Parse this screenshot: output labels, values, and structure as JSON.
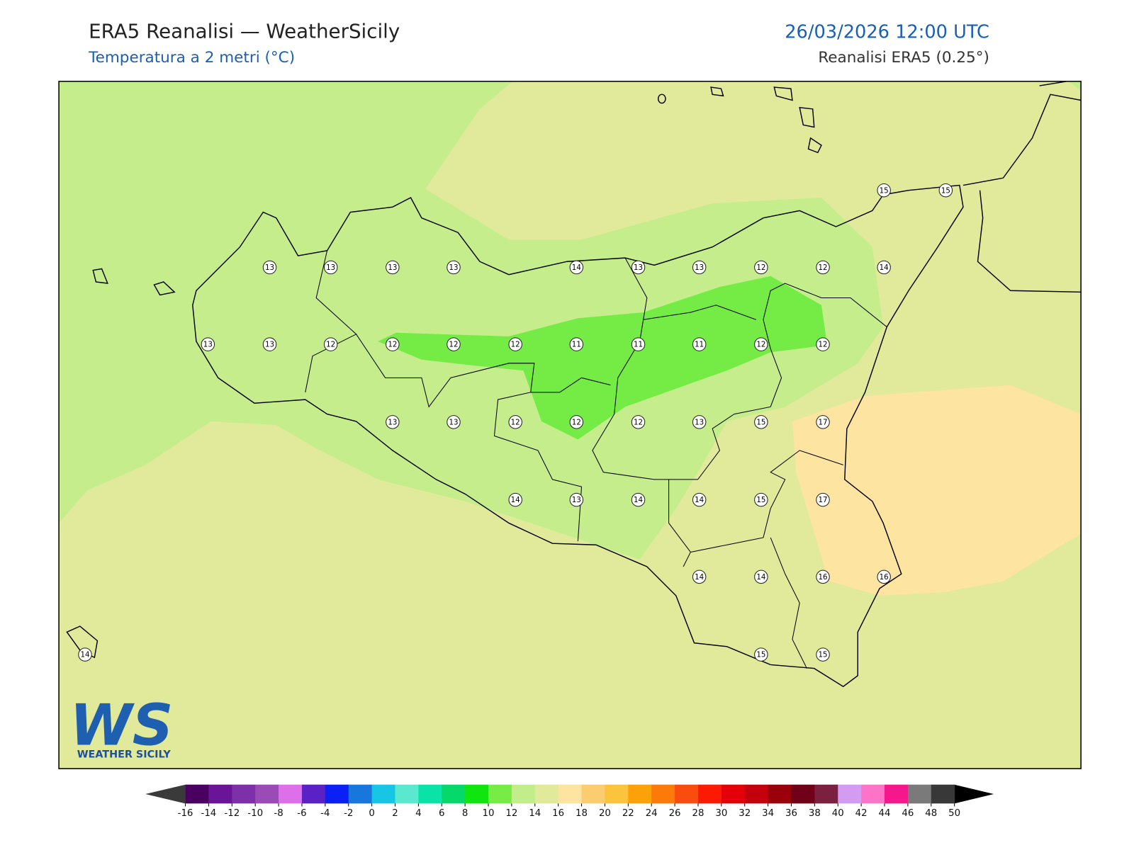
{
  "header": {
    "title": "ERA5 Reanalisi — WeatherSicily",
    "subtitle": "Temperatura a 2 metri (°C)",
    "datetime": "26/03/2026 12:00 UTC",
    "source": "Reanalisi ERA5 (0.25°)"
  },
  "map": {
    "stations": [
      15,
      15,
      13,
      13,
      13,
      13,
      14,
      13,
      13,
      12,
      12,
      14,
      13,
      13,
      12,
      12,
      12,
      12,
      11,
      11,
      11,
      12,
      12,
      13,
      13,
      12,
      12,
      12,
      13,
      15,
      17,
      14,
      13,
      14,
      14,
      15,
      17,
      14,
      14,
      16,
      16,
      14,
      15,
      15
    ]
  },
  "colorbar": {
    "ticks": [
      -16,
      -14,
      -12,
      -10,
      -8,
      -6,
      -4,
      -2,
      0,
      2,
      4,
      6,
      8,
      10,
      12,
      14,
      16,
      18,
      20,
      22,
      24,
      26,
      28,
      30,
      32,
      34,
      36,
      38,
      40,
      42,
      44,
      46,
      48,
      50
    ],
    "colors": [
      "#4a0060",
      "#6a1596",
      "#7e30a8",
      "#9b4bb5",
      "#dd70e8",
      "#5a22c4",
      "#0a20f5",
      "#1877dc",
      "#17c5e5",
      "#5ae9ce",
      "#0ae3a8",
      "#06d86a",
      "#10e510",
      "#76ec45",
      "#c1ed8b",
      "#e1e99a",
      "#fde4a0",
      "#fbcc70",
      "#fcc43c",
      "#fca108",
      "#fb7a0a",
      "#fb4c10",
      "#fc1a05",
      "#e40009",
      "#c4000c",
      "#9a0009",
      "#700018",
      "#7c2040",
      "#d39bf2",
      "#fb74c8",
      "#f5178b",
      "#7a7a7a",
      "#383838"
    ]
  },
  "logo": {
    "mark": "WS",
    "text": "WEATHER SICILY"
  }
}
